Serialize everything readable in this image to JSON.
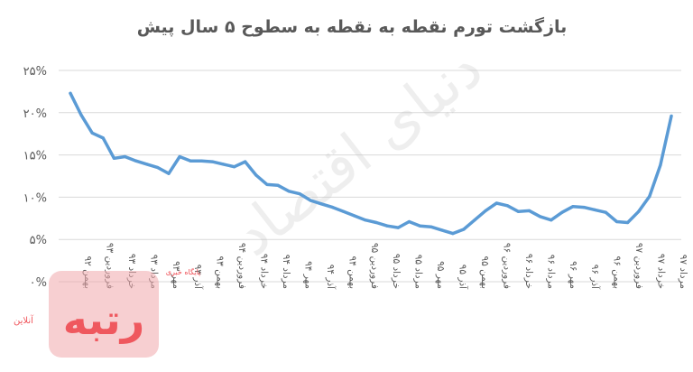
{
  "chart_data": {
    "type": "line",
    "title": "بازگشت تورم نقطه به نقطه به سطوح ۵ سال پیش",
    "xlabel": "",
    "ylabel": "",
    "ylim": [
      0,
      25
    ],
    "y_ticks": [
      "۰%",
      "۵%",
      "۱۰%",
      "۱۵%",
      "۲۰%",
      "۲۵%"
    ],
    "y_tick_values": [
      0,
      5,
      10,
      15,
      20,
      25
    ],
    "grid": true,
    "legend": "none",
    "line_color": "#5B9BD5",
    "x_tick_labels": [
      "بهمن ۹۲",
      "فروردین ۹۳",
      "خرداد ۹۳",
      "مرداد ۹۳",
      "مهر ۹۳",
      "آذر ۹۳",
      "بهمن ۹۳",
      "فروردین ۹۴",
      "خرداد ۹۴",
      "مرداد ۹۴",
      "مهر ۹۴",
      "آذر ۹۴",
      "بهمن ۹۴",
      "فروردین ۹۵",
      "خرداد ۹۵",
      "مرداد ۹۵",
      "مهر ۹۵",
      "آذر ۹۵",
      "بهمن ۹۵",
      "فروردین ۹۶",
      "خرداد ۹۶",
      "مرداد ۹۶",
      "مهر ۹۶",
      "آذر ۹۶",
      "بهمن ۹۶",
      "فروردین ۹۷",
      "خرداد ۹۷",
      "مرداد ۹۷"
    ],
    "series": [
      {
        "values": [
          22.3,
          19.7,
          17.6,
          17.0,
          14.6,
          14.8,
          14.3,
          13.9,
          13.5,
          12.8,
          14.8,
          14.3,
          14.3,
          14.2,
          13.9,
          13.6,
          14.2,
          12.6,
          11.5,
          11.4,
          10.7,
          10.4,
          9.6,
          9.2,
          8.8,
          8.3,
          7.8,
          7.3,
          7.0,
          6.6,
          6.4,
          7.1,
          6.6,
          6.5,
          6.1,
          5.7,
          6.2,
          7.3,
          8.4,
          9.3,
          9.0,
          8.3,
          8.4,
          7.7,
          7.3,
          8.2,
          8.9,
          8.8,
          8.5,
          8.2,
          7.1,
          7.0,
          8.3,
          10.1,
          13.8,
          19.6
        ]
      }
    ]
  },
  "watermark": {
    "logo_text": "رتبه",
    "logo_caption": "آنلاین",
    "logo_tagline": "پایگاه خبری",
    "center_text": "دنیای اقتصاد"
  }
}
